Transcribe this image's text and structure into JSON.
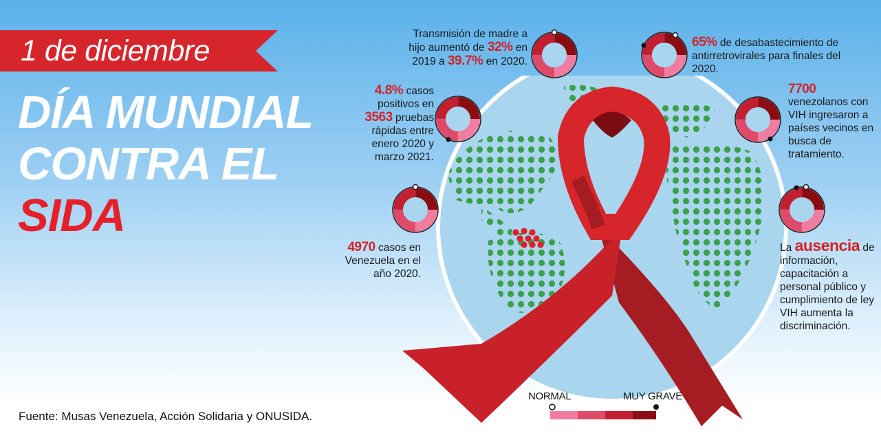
{
  "banner": {
    "date": "1 de diciembre"
  },
  "title": {
    "line1": "DÍA MUNDIAL",
    "line2": "CONTRA EL",
    "line3": "SIDA"
  },
  "stats": {
    "mother_child": {
      "pre": "Transmisión de madre a hijo aumentó de ",
      "v1": "32%",
      "mid": " en 2019 a ",
      "v2": "39.7%",
      "post": " en 2020."
    },
    "tests": {
      "v1": "4.8%",
      "mid1": " casos positivos en ",
      "v2": "3563",
      "post": " pruebas rápidas entre enero 2020 y marzo 2021."
    },
    "cases": {
      "v1": "4970",
      "post": " casos en Venezuela en el año 2020."
    },
    "shortage": {
      "v1": "65%",
      "post": " de desabastecimiento de antirretrovirales para finales del 2020."
    },
    "migrants": {
      "v1": "7700",
      "post": "venezolanos con VIH ingresaron a países vecinos en busca de tratamiento."
    },
    "absence": {
      "pre": "La ",
      "v1": "ausencia",
      "post": " de información, capacitación a personal público y cumplimiento de ley VIH aumenta la discriminación."
    }
  },
  "legend": {
    "normal": "NORMAL",
    "grave": "MUY GRAVE"
  },
  "source": "Fuente: Musas Venezuela, Acción Solidaria y ONUSIDA.",
  "colors": {
    "red": "#d2232a",
    "dark_red": "#8b0d12",
    "pink": "#f07ca0",
    "rose": "#e04a6a",
    "globe_dots": "#3aa04a",
    "globe": "#a9d5ee"
  }
}
